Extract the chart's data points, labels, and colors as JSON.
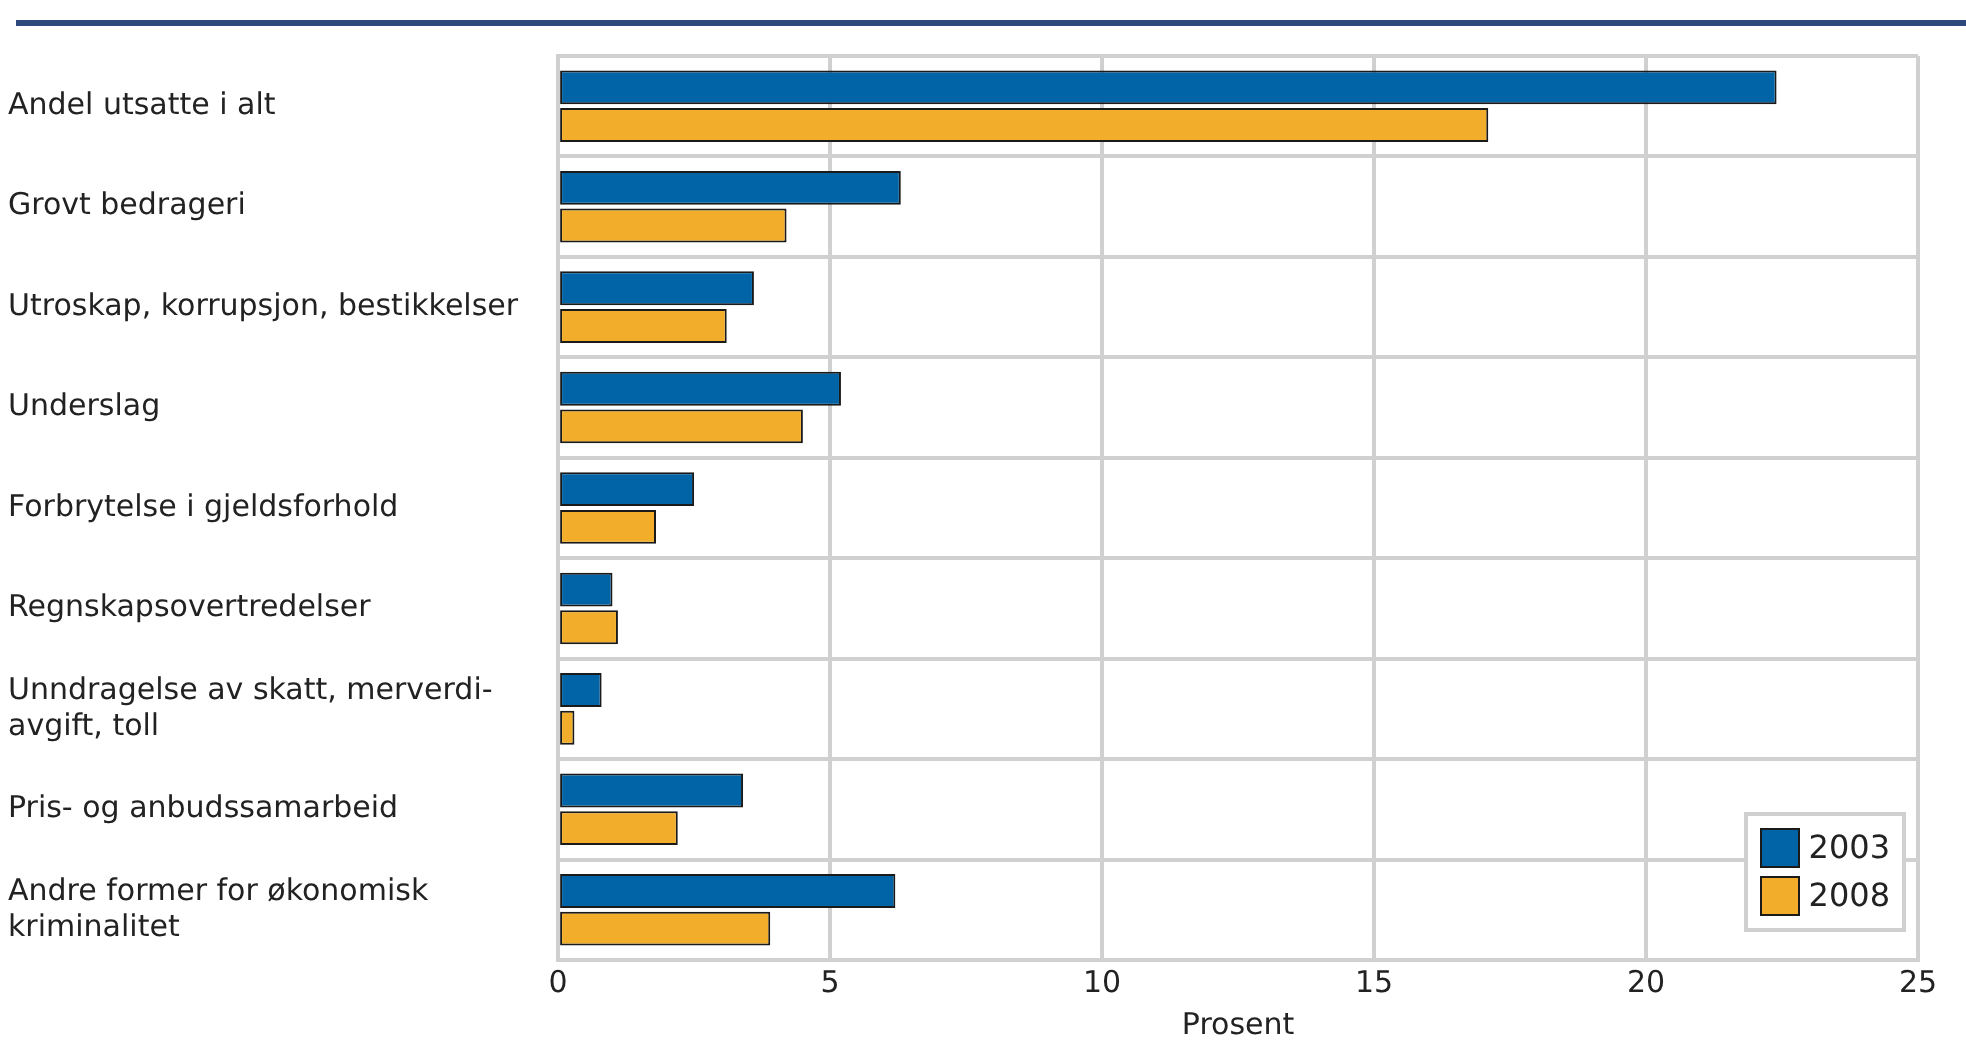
{
  "chart_data": {
    "type": "bar",
    "orientation": "horizontal",
    "xlabel": "Prosent",
    "categories": [
      "Andel utsatte i alt",
      "Grovt bedrageri",
      "Utroskap, korrupsjon, bestikkelser",
      "Underslag",
      "Forbrytelse i gjeldsforhold",
      "Regnskapsovertredelser",
      "Unndragelse av skatt, merverdi-\navgift, toll",
      "Pris- og anbudssamarbeid",
      "Andre former for økonomisk\nkriminalitet"
    ],
    "series": [
      {
        "name": "2003",
        "color": "#0064a6",
        "values": [
          22.4,
          6.3,
          3.6,
          5.2,
          2.5,
          1.0,
          0.8,
          3.4,
          6.2
        ]
      },
      {
        "name": "2008",
        "color": "#f2ae2a",
        "values": [
          17.1,
          4.2,
          3.1,
          4.5,
          1.8,
          1.1,
          0.3,
          2.2,
          3.9
        ]
      }
    ],
    "xlim": [
      0,
      25
    ],
    "xticks": [
      0,
      5,
      10,
      15,
      20,
      25
    ],
    "grid": true,
    "legend": "bottom right"
  }
}
